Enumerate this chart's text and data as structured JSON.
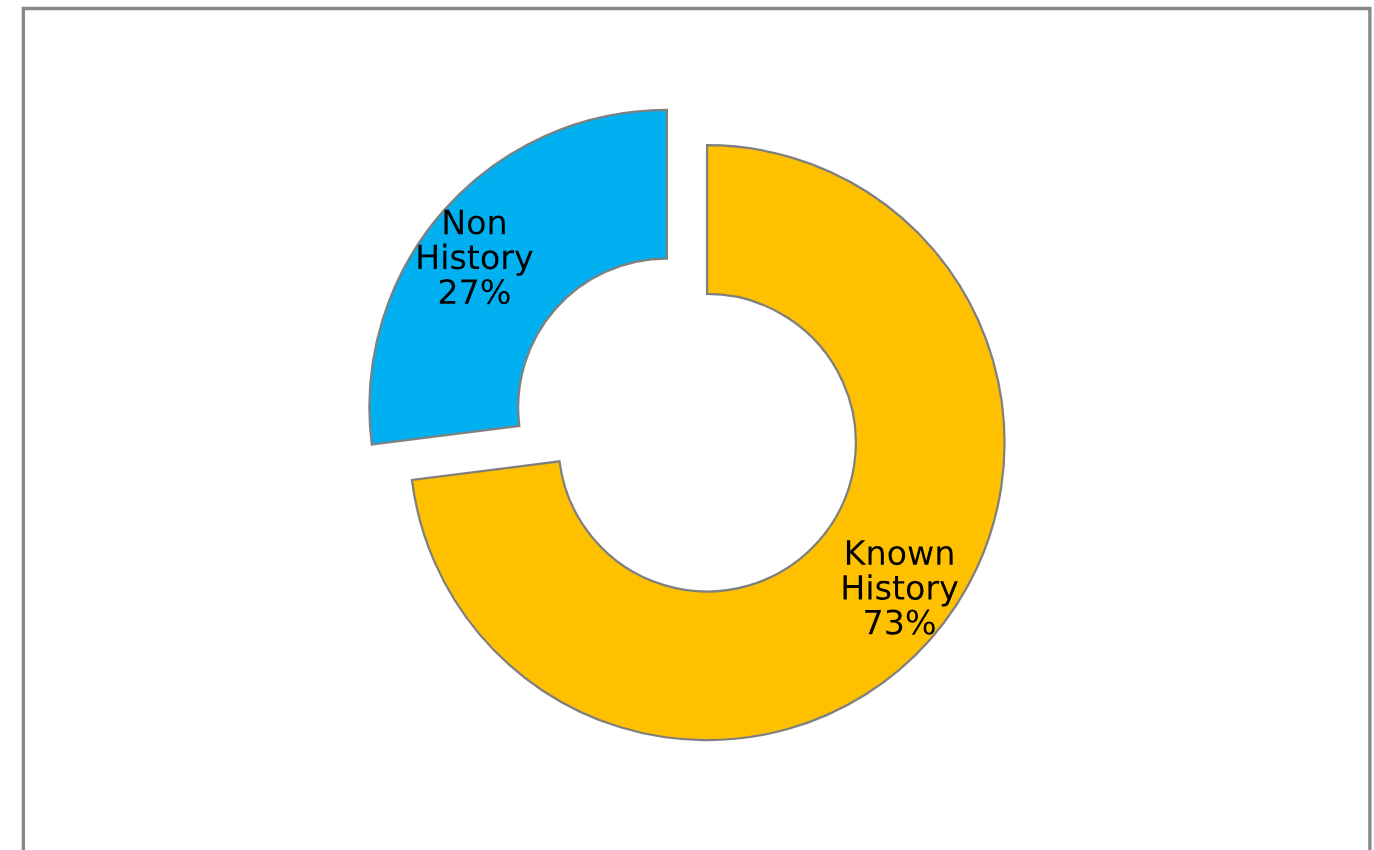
{
  "chart_data": {
    "type": "donut",
    "categories": [
      "Known History",
      "Non History"
    ],
    "values": [
      73,
      27
    ],
    "colors": [
      "#ffc000",
      "#00b0f0"
    ],
    "value_labels": [
      "73%",
      "27%"
    ],
    "legend": false
  }
}
